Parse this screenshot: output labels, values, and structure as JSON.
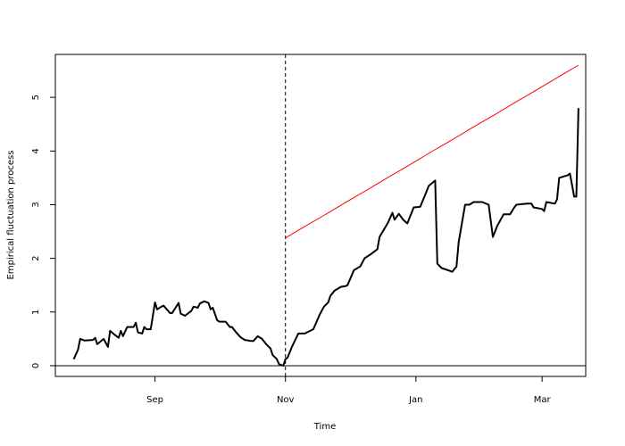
{
  "chart_data": {
    "type": "line",
    "xlabel": "Time",
    "ylabel": "Empirical fluctuation process",
    "xlim": [
      -15.6,
      232.4
    ],
    "ylim": [
      -0.2,
      5.8
    ],
    "xticks": [
      {
        "value": 31,
        "label": "Sep"
      },
      {
        "value": 92,
        "label": "Nov"
      },
      {
        "value": 153,
        "label": "Jan"
      },
      {
        "value": 212,
        "label": "Mar"
      }
    ],
    "yticks": [
      0,
      1,
      2,
      3,
      4,
      5
    ],
    "grid": false,
    "vlines": [
      92
    ],
    "hlines": [
      0
    ],
    "series": [
      {
        "color": "#000000",
        "x": [
          -7,
          -5,
          -4,
          -2,
          2,
          3,
          4,
          7,
          9,
          10,
          12,
          14,
          15,
          16,
          18,
          21,
          22,
          23,
          25,
          26,
          27,
          29,
          31,
          32,
          34,
          35,
          38,
          39,
          42,
          43,
          45,
          48,
          49,
          51,
          52,
          54,
          56,
          57,
          58,
          60,
          61,
          64,
          66,
          67,
          69,
          71,
          73,
          76,
          77,
          79,
          81,
          83,
          85,
          86,
          88,
          89,
          91,
          92,
          93,
          95,
          98,
          101,
          105,
          108,
          110,
          112,
          113,
          115,
          118,
          120,
          121,
          124,
          127,
          129,
          132,
          135,
          136,
          139,
          140,
          142,
          143,
          145,
          147,
          149,
          152,
          155,
          157,
          159,
          162,
          163,
          165,
          168,
          170,
          172,
          173,
          176,
          178,
          180,
          184,
          187,
          189,
          191,
          194,
          197,
          199,
          200,
          205,
          207,
          208,
          212,
          213,
          214,
          218,
          219,
          220,
          224,
          225,
          227,
          228,
          229
        ],
        "values": [
          0.12,
          0.3,
          0.5,
          0.47,
          0.48,
          0.52,
          0.4,
          0.5,
          0.35,
          0.65,
          0.58,
          0.52,
          0.65,
          0.55,
          0.72,
          0.72,
          0.8,
          0.62,
          0.6,
          0.72,
          0.68,
          0.68,
          1.18,
          1.05,
          1.1,
          1.12,
          0.98,
          0.98,
          1.17,
          0.97,
          0.93,
          1.02,
          1.1,
          1.08,
          1.16,
          1.2,
          1.17,
          1.05,
          1.08,
          0.85,
          0.82,
          0.82,
          0.72,
          0.72,
          0.62,
          0.53,
          0.48,
          0.46,
          0.46,
          0.55,
          0.5,
          0.4,
          0.32,
          0.2,
          0.12,
          0.03,
          0.0,
          0.12,
          0.15,
          0.35,
          0.6,
          0.6,
          0.68,
          0.95,
          1.1,
          1.18,
          1.3,
          1.4,
          1.47,
          1.48,
          1.5,
          1.78,
          1.85,
          2.0,
          2.08,
          2.17,
          2.4,
          2.6,
          2.67,
          2.85,
          2.72,
          2.83,
          2.72,
          2.65,
          2.95,
          2.96,
          3.15,
          3.35,
          3.45,
          1.9,
          1.82,
          1.78,
          1.75,
          1.85,
          2.3,
          3.0,
          3.0,
          3.05,
          3.05,
          3.0,
          2.4,
          2.6,
          2.82,
          2.82,
          2.95,
          3.0,
          3.02,
          3.02,
          2.95,
          2.92,
          2.88,
          3.05,
          3.02,
          3.1,
          3.5,
          3.55,
          3.58,
          3.15,
          3.15,
          4.8
        ]
      },
      {
        "color": "#ff0000",
        "x": [
          92,
          100,
          110,
          120,
          130,
          140,
          150,
          160,
          170,
          180,
          190,
          200,
          210,
          220,
          229
        ],
        "values": [
          2.38,
          2.57,
          2.8,
          3.04,
          3.27,
          3.51,
          3.74,
          3.98,
          4.21,
          4.45,
          4.68,
          4.92,
          5.15,
          5.39,
          5.6
        ]
      }
    ]
  }
}
